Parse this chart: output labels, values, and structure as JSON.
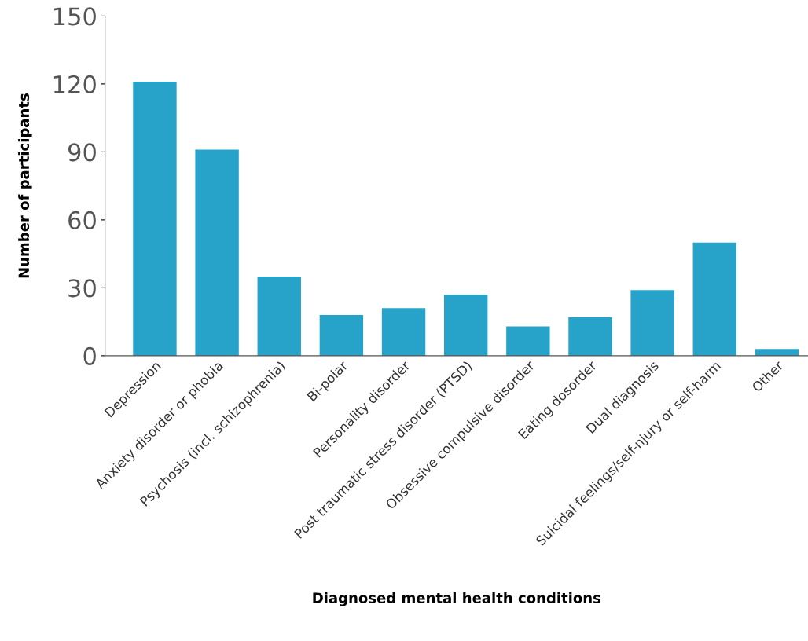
{
  "chart_data": {
    "type": "bar",
    "xlabel": "Diagnosed mental health conditions",
    "ylabel": "Number of participants",
    "categories": [
      "Depression",
      "Anxiety disorder or phobia",
      "Psychosis (incl. schizophrenia)",
      "Bi-polar",
      "Personality disorder",
      "Post traumatic stress disorder (PTSD)",
      "Obsessive compulsive disorder",
      "Eating dosorder",
      "Dual diagnosis",
      "Suicidal feelings/self-njury or self-harm",
      "Other"
    ],
    "values": [
      121,
      91,
      35,
      18,
      21,
      27,
      13,
      17,
      29,
      50,
      3
    ],
    "color": "#27a2c8",
    "ylim": [
      0,
      150
    ],
    "yticks": [
      0,
      30,
      60,
      90,
      120,
      150
    ],
    "grid": false,
    "legend": false
  }
}
